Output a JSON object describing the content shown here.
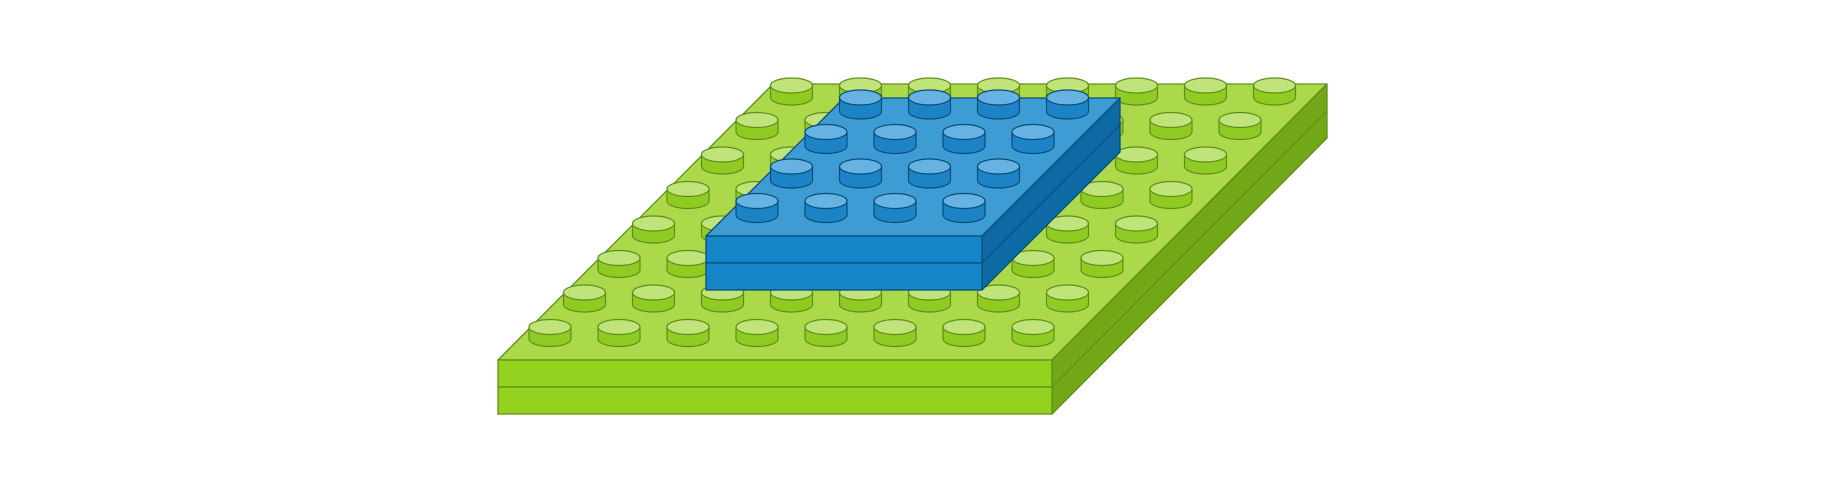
{
  "scene": {
    "description_visible_text": "",
    "colors": {
      "background": "#ffffff",
      "plate_top": "#acd94a",
      "plate_front": "#95d11f",
      "plate_side": "#72a717",
      "plate_outline": "#5f8f1a",
      "plate_stud_top": "#c0e47a",
      "plate_stud_side": "#8fcb22",
      "brick_top": "#3d9cd4",
      "brick_front": "#1585c9",
      "brick_side": "#0e6aa4",
      "brick_outline": "#0a4d7a",
      "brick_stud_top": "#66b3e3",
      "brick_stud_side": "#1c84c6"
    },
    "baseplate": {
      "name": "green-baseplate",
      "columns": 8,
      "rows": 8,
      "layers": 2
    },
    "brick": {
      "name": "blue-brick",
      "columns": 4,
      "rows": 4,
      "layers": 2
    }
  }
}
